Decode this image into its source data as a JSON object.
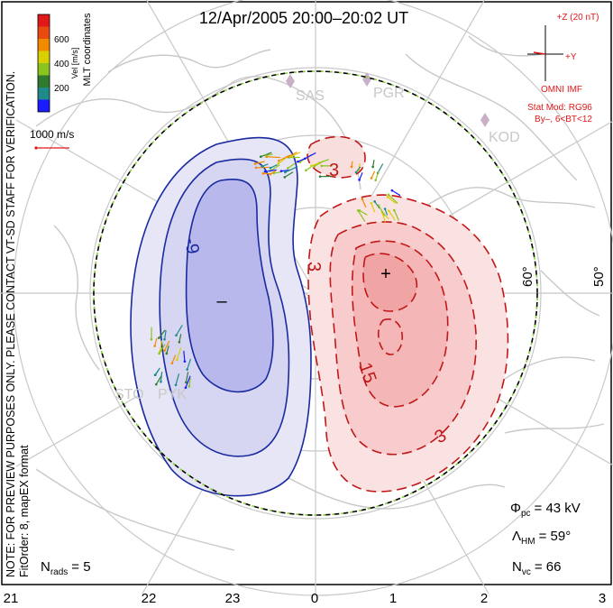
{
  "title": "12/Apr/2005 20:00–20:02 UT",
  "colorbar": {
    "ticks": [
      "600",
      "400",
      "200"
    ],
    "unit_label": "Vel [m/s]",
    "colors": [
      "#1b1bff",
      "#1e8a8a",
      "#2f7a2f",
      "#8ac41c",
      "#d8d000",
      "#f28a00",
      "#e84a10",
      "#e01818"
    ]
  },
  "coord_label": "MLT coordinates",
  "ref_vector_label": "1000 m/s",
  "watermark_note": "NOTE: FOR PREVIEW PURPOSES ONLY. PLEASE CONTACT VT-SD STAFF FOR VERIFICATION.",
  "fit_info": "FitOrder: 8, mapEX format",
  "imf": {
    "z_label": "+Z (20 nT)",
    "y_label": "+Y",
    "source": "OMNI IMF",
    "model_line1": "Stat Mod: RG96",
    "model_line2": "By–, 6<BT<12"
  },
  "stations": [
    "SAS",
    "PGR",
    "KOD",
    "STO",
    "PYK"
  ],
  "latitude_labels": [
    "60°",
    "50°"
  ],
  "contour_labels": [
    "-9",
    "3",
    "15",
    "3",
    "3"
  ],
  "cell_markers": {
    "min": "–",
    "max": "+"
  },
  "stats": {
    "phi_pc_symbol": "Φ",
    "phi_pc_sub": "pc",
    "phi_pc_value": "= 43 kV",
    "lambda_symbol": "Λ",
    "lambda_sub": "HM",
    "lambda_value": "= 59°",
    "nvc_symbol": "N",
    "nvc_sub": "vc",
    "nvc_value": "= 66",
    "nrads_symbol": "N",
    "nrads_sub": "rads",
    "nrads_value": "= 5"
  },
  "mlt_ticks": [
    "21",
    "22",
    "23",
    "0",
    "1",
    "2",
    "3"
  ],
  "colors": {
    "neg_fill": "#c8c8ef",
    "neg_line": "#1a2aa0",
    "pos_fill": "#f6c4c4",
    "pos_line": "#c01818",
    "coast": "#c8c8c8",
    "grid": "#c8c8c8"
  }
}
